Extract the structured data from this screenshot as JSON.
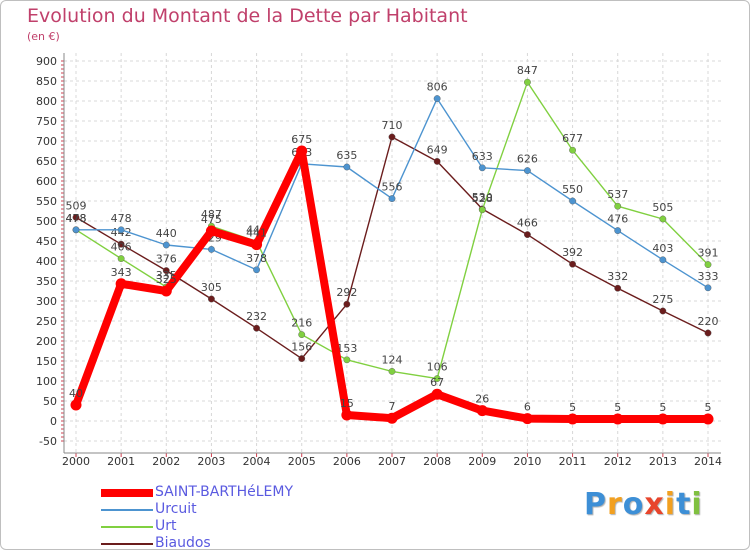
{
  "chart_data": {
    "type": "line",
    "title": "Evolution du Montant de la Dette par Habitant",
    "subtitle": "(en €)",
    "x": [
      "2000",
      "2001",
      "2002",
      "2003",
      "2004",
      "2005",
      "2006",
      "2007",
      "2008",
      "2009",
      "2010",
      "2011",
      "2012",
      "2013",
      "2014"
    ],
    "y_ticks": [
      -50,
      0,
      50,
      100,
      150,
      200,
      250,
      300,
      350,
      400,
      450,
      500,
      550,
      600,
      650,
      700,
      750,
      800,
      850,
      900
    ],
    "ylim": [
      -50,
      900
    ],
    "grid": "horizontal dashed",
    "legend_position": "bottom-left",
    "series": [
      {
        "name": "SAINT-BARTHéLEMY",
        "color": "#ff0000",
        "values": [
          40,
          343,
          325,
          475,
          441,
          675,
          15,
          7,
          67,
          26,
          6,
          5,
          5,
          5,
          5
        ],
        "labels": [
          "40",
          "343",
          "325",
          "475",
          "441",
          "675",
          "15",
          "7",
          "67",
          "26",
          "6",
          "5",
          "5",
          "5",
          "5"
        ]
      },
      {
        "name": "Urcuit",
        "color": "#4d94d0",
        "values": [
          478,
          478,
          440,
          429,
          378,
          643,
          635,
          556,
          806,
          633,
          626,
          550,
          476,
          403,
          333
        ],
        "labels": [
          "478",
          "478",
          "440",
          "429",
          "378",
          "643",
          "635",
          "556",
          "806",
          "633",
          "626",
          "550",
          "476",
          "403",
          "333"
        ]
      },
      {
        "name": "Urt",
        "color": "#80d040",
        "values": [
          478,
          406,
          335,
          487,
          449,
          216,
          153,
          124,
          106,
          528,
          847,
          677,
          537,
          505,
          391
        ],
        "labels": [
          "478",
          "406",
          "335",
          "487",
          "449",
          "216",
          "153",
          "124",
          "106",
          "528",
          "847",
          "677",
          "537",
          "505",
          "391"
        ]
      },
      {
        "name": "Biaudos",
        "color": "#6b1d1d",
        "values": [
          509,
          442,
          376,
          305,
          232,
          156,
          292,
          710,
          649,
          530,
          466,
          392,
          332,
          275,
          220
        ],
        "labels": [
          "509",
          "442",
          "376",
          "305",
          "232",
          "156",
          "292",
          "710",
          "649",
          "530",
          "466",
          "392",
          "332",
          "275",
          "220"
        ]
      }
    ]
  },
  "logo": {
    "letters": [
      "P",
      "r",
      "o",
      "x",
      "i",
      "t",
      "i"
    ],
    "colors": [
      "#3d8fd6",
      "#f2a020",
      "#3d8fd6",
      "#e8452c",
      "#f2a020",
      "#3d8fd6",
      "#80c040"
    ]
  }
}
